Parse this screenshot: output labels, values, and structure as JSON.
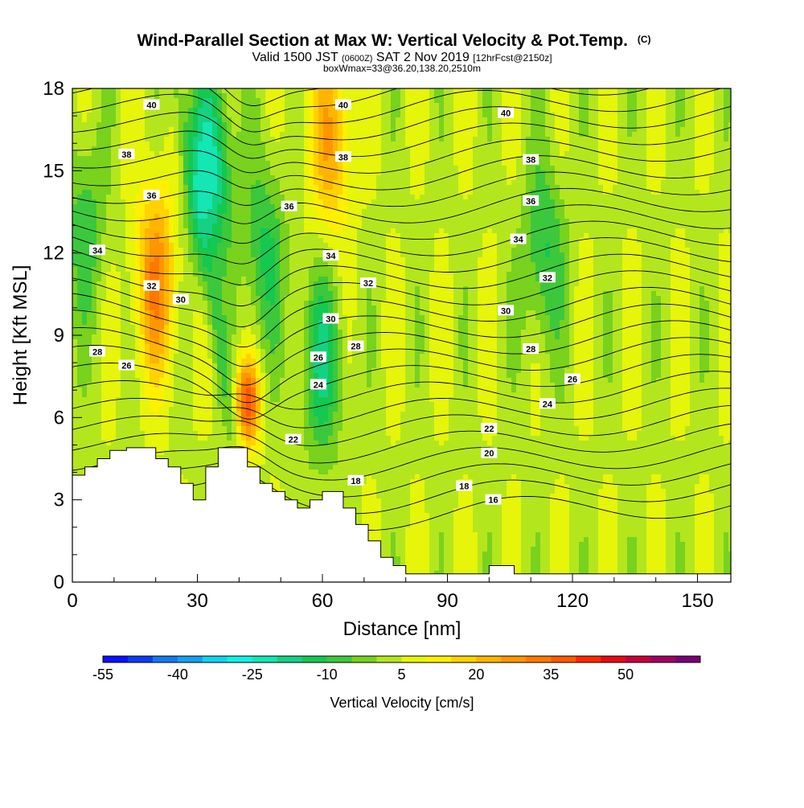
{
  "chart_data": {
    "type": "heatmap",
    "title": "Wind-Parallel Section at Max W: Vertical Velocity & Pot.Temp.",
    "title_units": "(C)",
    "subtitle_main": "Valid 1500 JST",
    "subtitle_zulu": "(0600Z)",
    "subtitle_date": "SAT 2 Nov 2019",
    "subtitle_fcst": "[12hrFcst@2150z]",
    "subtitle2": "boxWmax=33@36.20,138.20,2510m",
    "xlabel": "Distance [nm]",
    "ylabel": "Height [Kft MSL]",
    "xlim": [
      0,
      158
    ],
    "ylim": [
      0,
      18
    ],
    "x_ticks": [
      "0",
      "30",
      "60",
      "90",
      "120",
      "150"
    ],
    "x_tick_values": [
      0,
      30,
      60,
      90,
      120,
      150
    ],
    "y_ticks": [
      "0",
      "3",
      "6",
      "9",
      "12",
      "15",
      "18"
    ],
    "y_tick_values": [
      0,
      3,
      6,
      9,
      12,
      15,
      18
    ],
    "colorbar": {
      "label": "Vertical Velocity [cm/s]",
      "tick_labels": [
        "-55",
        "-40",
        "-25",
        "-10",
        "5",
        "20",
        "35",
        "50"
      ],
      "tick_values": [
        -55,
        -40,
        -25,
        -10,
        5,
        20,
        35,
        50
      ],
      "min": -55,
      "max": 65,
      "step": 5,
      "colors": [
        "#0a10ff",
        "#0a3cf5",
        "#1478f0",
        "#14a0f0",
        "#14d2f0",
        "#14f0e6",
        "#14e6b4",
        "#14d282",
        "#14c850",
        "#3cc83c",
        "#78d21e",
        "#b4e61e",
        "#e6f50a",
        "#fff000",
        "#ffd200",
        "#ffb400",
        "#ff9600",
        "#ff7800",
        "#ff5a00",
        "#ff2800",
        "#e60a14",
        "#c8003c",
        "#a00064",
        "#7a0078"
      ]
    },
    "velocity_features": [
      {
        "x": 42,
        "y": 6.5,
        "w": 33
      },
      {
        "x": 20,
        "y": 11,
        "w": 25
      },
      {
        "x": 62,
        "y": 16,
        "w": 20
      },
      {
        "x": 33,
        "y": 15,
        "w": -27
      },
      {
        "x": 46,
        "y": 12,
        "w": -15
      },
      {
        "x": 60,
        "y": 8,
        "w": -18
      },
      {
        "x": 113,
        "y": 12,
        "w": -15
      },
      {
        "x": 3,
        "y": 13,
        "w": -12
      }
    ],
    "theta_labels": [
      {
        "text": "40",
        "x": 19,
        "y": 17.4
      },
      {
        "text": "40",
        "x": 65,
        "y": 17.4
      },
      {
        "text": "40",
        "x": 104,
        "y": 17.1
      },
      {
        "text": "38",
        "x": 13,
        "y": 15.6
      },
      {
        "text": "38",
        "x": 65,
        "y": 15.5
      },
      {
        "text": "38",
        "x": 110,
        "y": 15.4
      },
      {
        "text": "36",
        "x": 19,
        "y": 14.1
      },
      {
        "text": "36",
        "x": 52,
        "y": 13.7
      },
      {
        "text": "36",
        "x": 110,
        "y": 13.9
      },
      {
        "text": "34",
        "x": 6,
        "y": 12.1
      },
      {
        "text": "34",
        "x": 62,
        "y": 11.9
      },
      {
        "text": "34",
        "x": 107,
        "y": 12.5
      },
      {
        "text": "32",
        "x": 19,
        "y": 10.8
      },
      {
        "text": "32",
        "x": 71,
        "y": 10.9
      },
      {
        "text": "32",
        "x": 114,
        "y": 11.1
      },
      {
        "text": "30",
        "x": 26,
        "y": 10.3
      },
      {
        "text": "30",
        "x": 62,
        "y": 9.6
      },
      {
        "text": "30",
        "x": 104,
        "y": 9.9
      },
      {
        "text": "28",
        "x": 6,
        "y": 8.4
      },
      {
        "text": "28",
        "x": 68,
        "y": 8.6
      },
      {
        "text": "28",
        "x": 110,
        "y": 8.5
      },
      {
        "text": "26",
        "x": 13,
        "y": 7.9
      },
      {
        "text": "26",
        "x": 59,
        "y": 8.2
      },
      {
        "text": "26",
        "x": 120,
        "y": 7.4
      },
      {
        "text": "24",
        "x": 59,
        "y": 7.2
      },
      {
        "text": "24",
        "x": 114,
        "y": 6.5
      },
      {
        "text": "22",
        "x": 53,
        "y": 5.2
      },
      {
        "text": "22",
        "x": 100,
        "y": 5.6
      },
      {
        "text": "20",
        "x": 100,
        "y": 4.7
      },
      {
        "text": "18",
        "x": 68,
        "y": 3.7
      },
      {
        "text": "18",
        "x": 94,
        "y": 3.5
      },
      {
        "text": "16",
        "x": 101,
        "y": 3.0
      }
    ],
    "terrain_profile": [
      [
        0,
        3.9
      ],
      [
        3,
        3.9
      ],
      [
        3,
        4.2
      ],
      [
        6,
        4.2
      ],
      [
        6,
        4.5
      ],
      [
        9,
        4.5
      ],
      [
        9,
        4.8
      ],
      [
        13,
        4.8
      ],
      [
        13,
        4.9
      ],
      [
        20,
        4.9
      ],
      [
        20,
        4.5
      ],
      [
        23,
        4.5
      ],
      [
        23,
        4.2
      ],
      [
        26,
        4.2
      ],
      [
        26,
        3.6
      ],
      [
        29,
        3.6
      ],
      [
        29,
        3.0
      ],
      [
        32,
        3.0
      ],
      [
        32,
        4.2
      ],
      [
        35,
        4.2
      ],
      [
        35,
        4.9
      ],
      [
        42,
        4.9
      ],
      [
        42,
        4.2
      ],
      [
        45,
        4.2
      ],
      [
        45,
        3.6
      ],
      [
        48,
        3.6
      ],
      [
        48,
        3.3
      ],
      [
        51,
        3.3
      ],
      [
        51,
        3.0
      ],
      [
        54,
        3.0
      ],
      [
        54,
        2.7
      ],
      [
        57,
        2.7
      ],
      [
        57,
        3.0
      ],
      [
        60,
        3.0
      ],
      [
        60,
        3.3
      ],
      [
        65,
        3.3
      ],
      [
        65,
        2.7
      ],
      [
        68,
        2.7
      ],
      [
        68,
        2.1
      ],
      [
        71,
        2.1
      ],
      [
        71,
        1.5
      ],
      [
        74,
        1.5
      ],
      [
        74,
        0.9
      ],
      [
        77,
        0.9
      ],
      [
        77,
        0.6
      ],
      [
        80,
        0.6
      ],
      [
        80,
        0.3
      ],
      [
        100,
        0.3
      ],
      [
        100,
        0.6
      ],
      [
        106,
        0.6
      ],
      [
        106,
        0.3
      ],
      [
        158,
        0.3
      ]
    ]
  }
}
